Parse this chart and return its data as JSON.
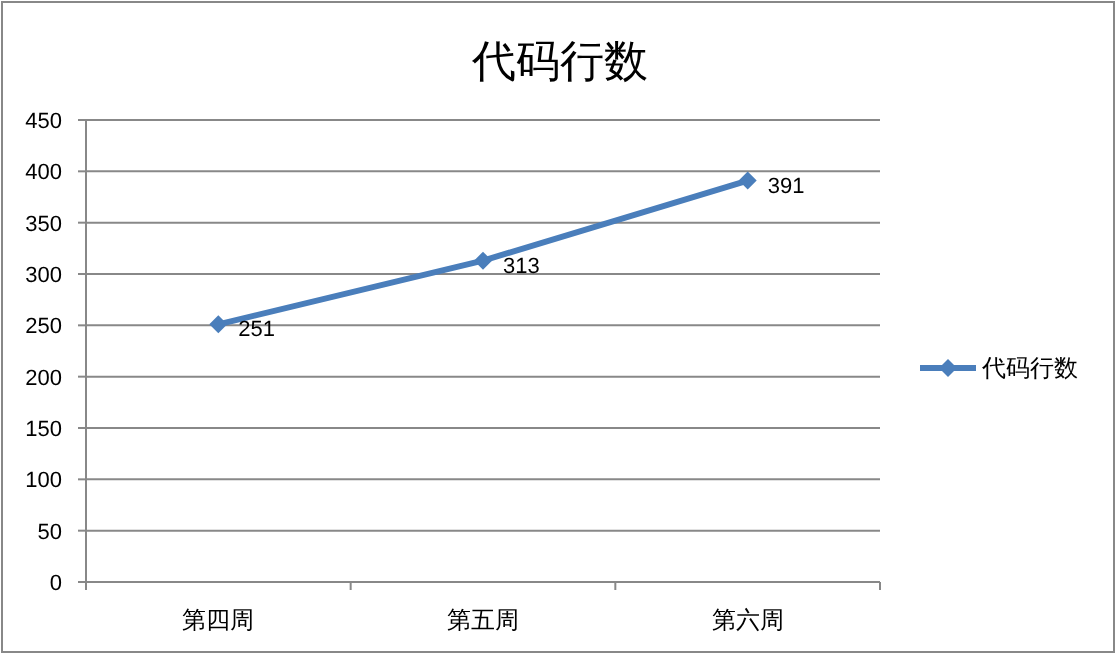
{
  "chart_data": {
    "type": "line",
    "title": "代码行数",
    "categories": [
      "第四周",
      "第五周",
      "第六周"
    ],
    "series": [
      {
        "name": "代码行数",
        "color": "#4a7ebb",
        "values": [
          251,
          313,
          391
        ]
      }
    ],
    "ylim": [
      0,
      450
    ],
    "yticks": [
      0,
      50,
      100,
      150,
      200,
      250,
      300,
      350,
      400,
      450
    ],
    "grid": "y",
    "legend": "right",
    "marker": "diamond",
    "line_style": "solid",
    "data_labels": true
  }
}
